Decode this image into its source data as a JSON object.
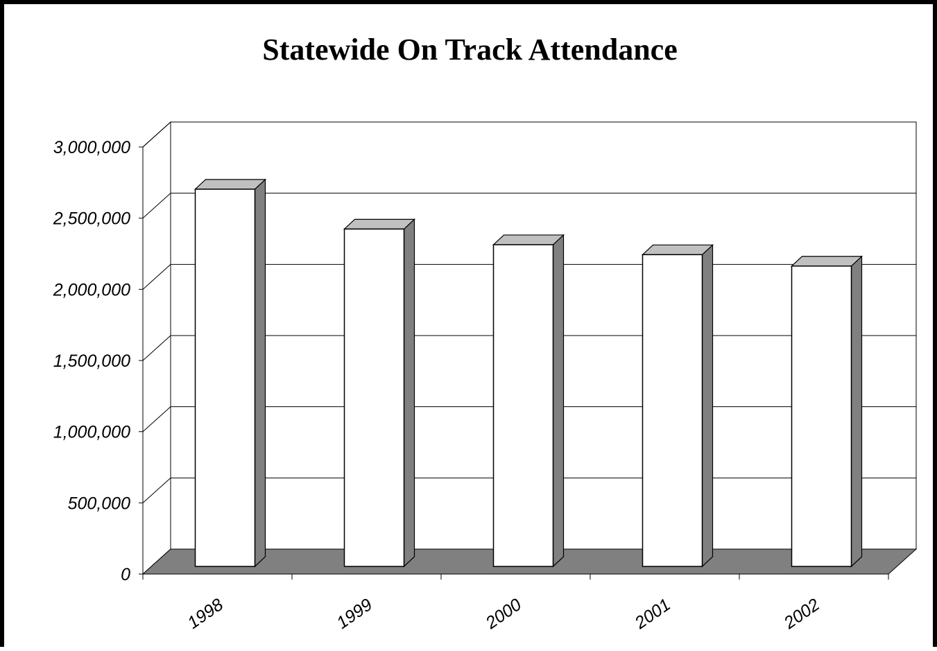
{
  "chart_data": {
    "type": "bar",
    "title": "Statewide On Track Attendance",
    "xlabel": "",
    "ylabel": "",
    "categories": [
      "1998",
      "1999",
      "2000",
      "2001",
      "2002"
    ],
    "values": [
      2650000,
      2370000,
      2260000,
      2190000,
      2110000
    ],
    "ylim": [
      0,
      3000000
    ],
    "yticks": [
      0,
      500000,
      1000000,
      1500000,
      2000000,
      2500000,
      3000000
    ],
    "ytick_labels": [
      "0",
      "500,000",
      "1,000,000",
      "1,500,000",
      "2,000,000",
      "2,500,000",
      "3,000,000"
    ],
    "grid": true,
    "legend": "none",
    "style": "3d-column",
    "colors": {
      "bar_front": "#ffffff",
      "bar_side": "#808080",
      "bar_top": "#c0c0c0",
      "floor": "#808080",
      "gridline": "#000000"
    }
  }
}
